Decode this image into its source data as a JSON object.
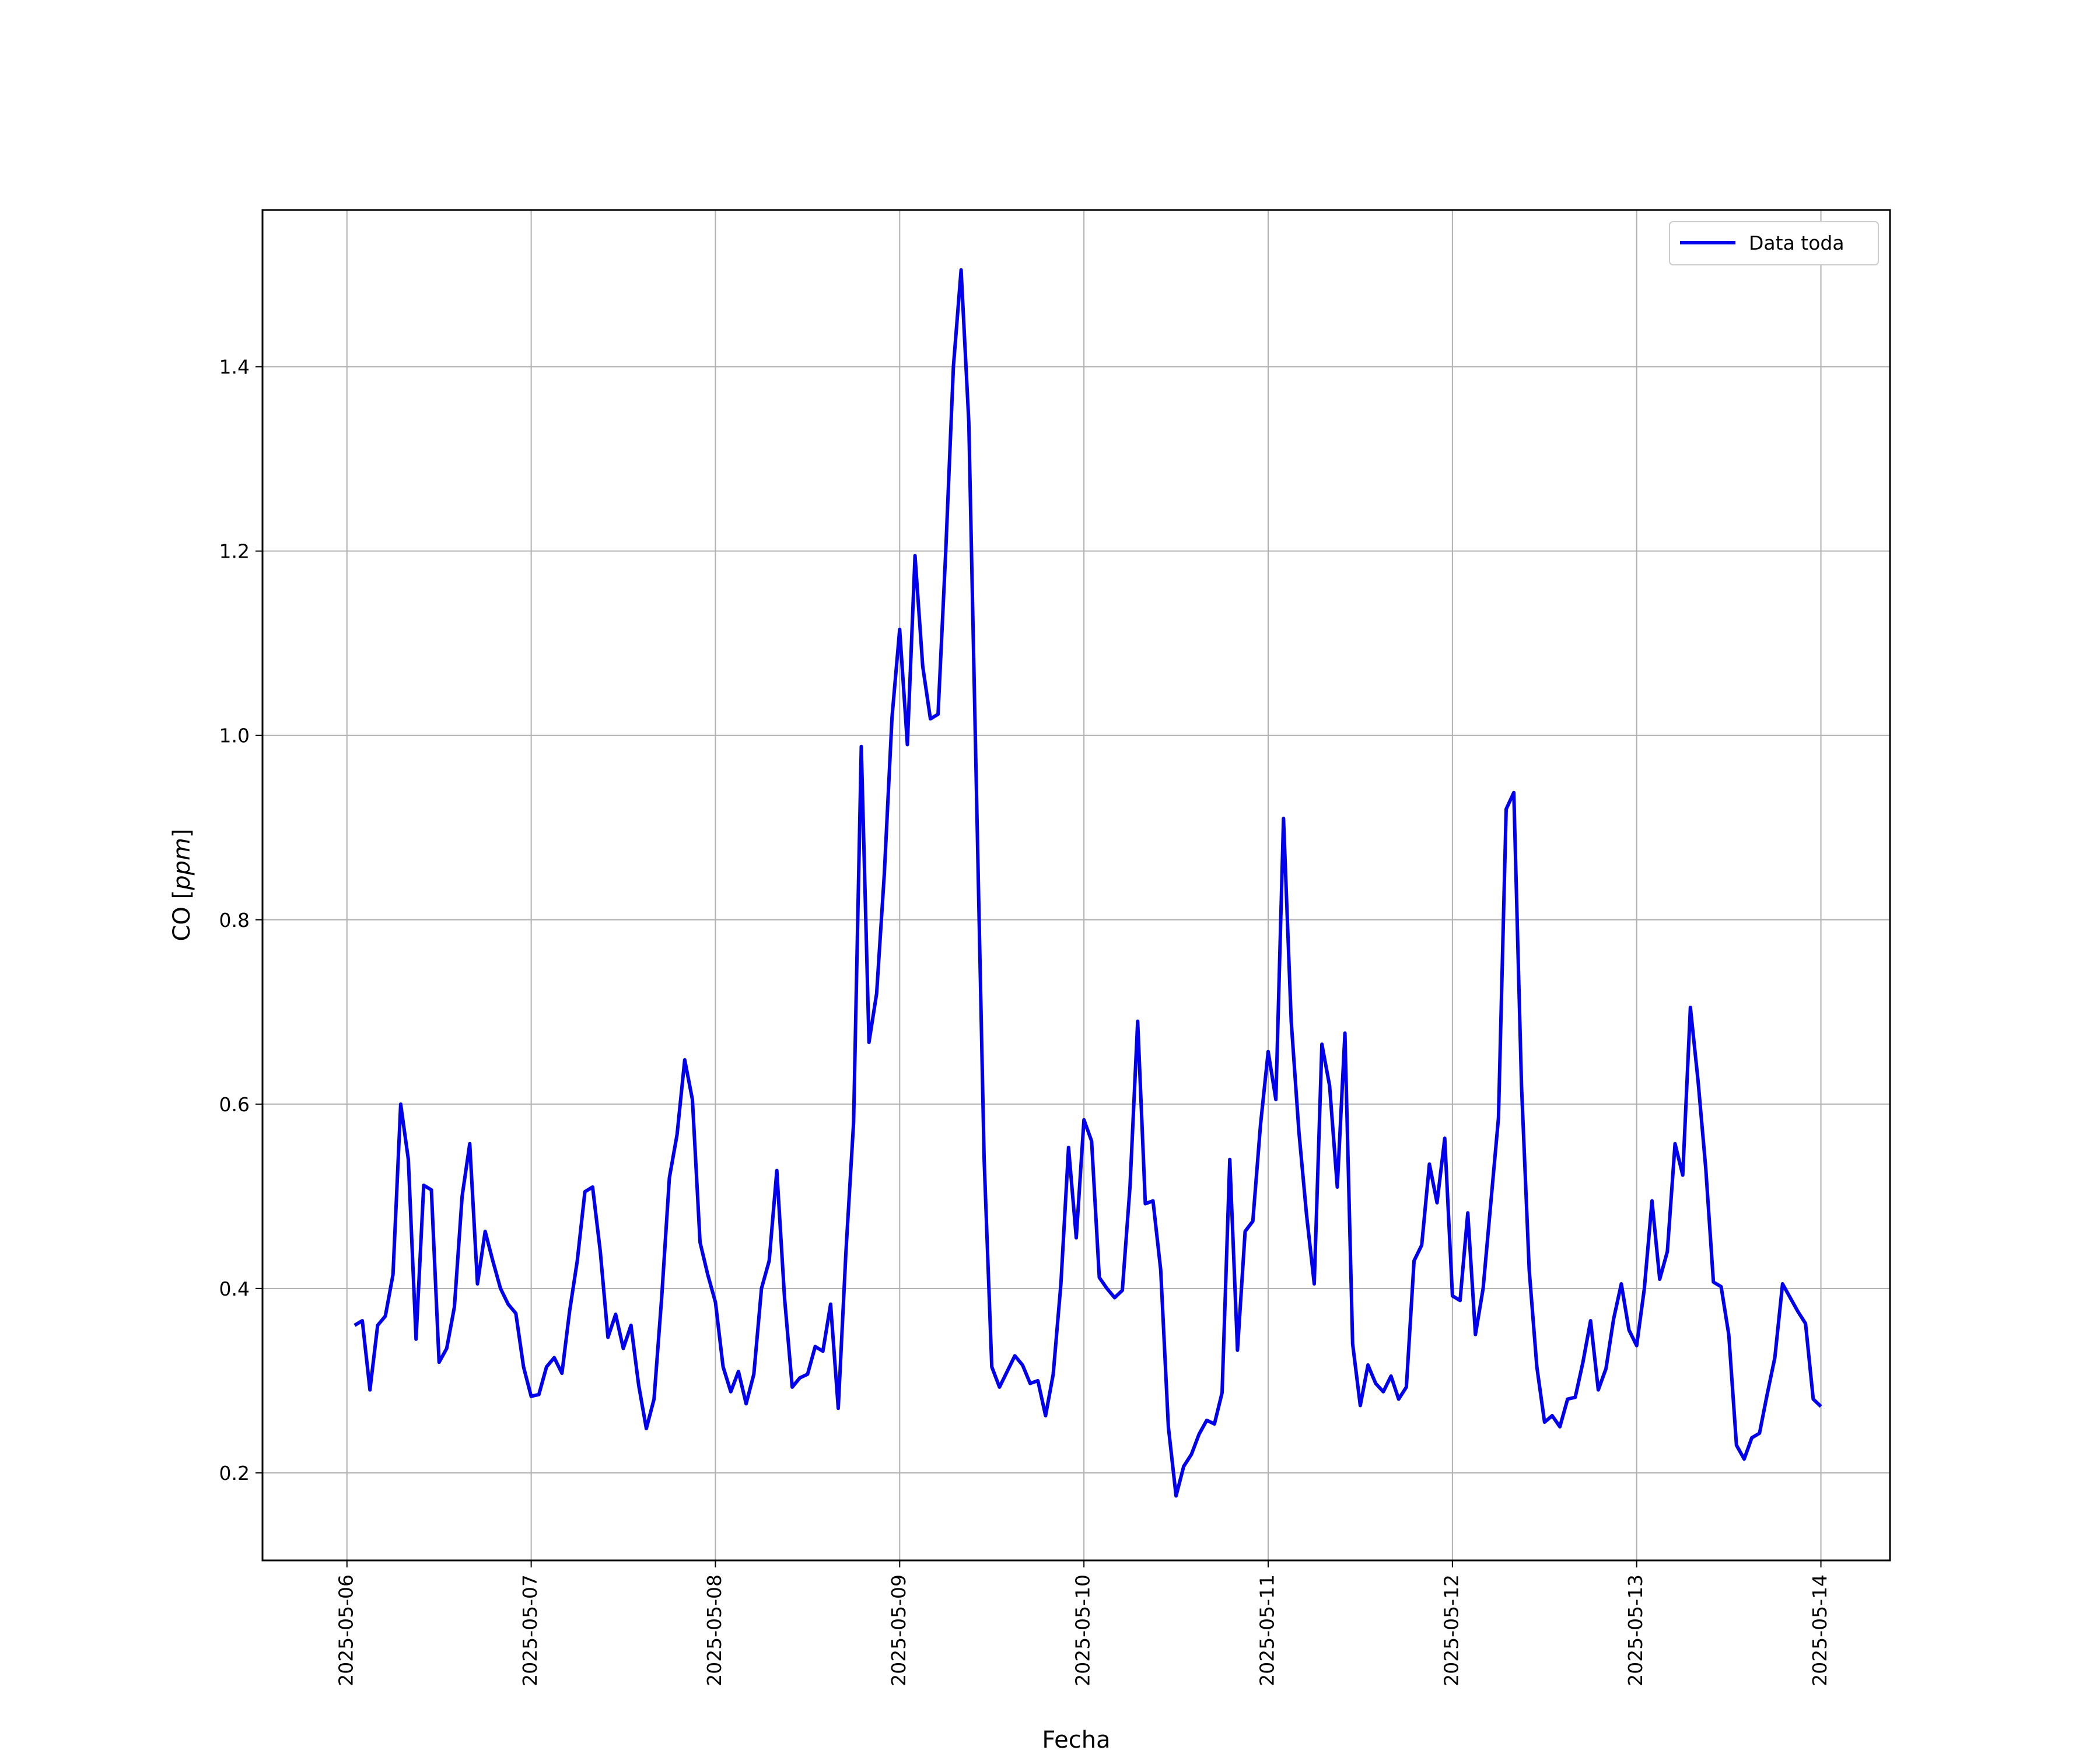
{
  "chart_data": {
    "type": "line",
    "title": "",
    "xlabel": "Fecha",
    "ylabel_main": "CO",
    "ylabel_unit": "ppm",
    "x_ticks": [
      "2025-05-06",
      "2025-05-07",
      "2025-05-08",
      "2025-05-09",
      "2025-05-10",
      "2025-05-11",
      "2025-05-12",
      "2025-05-13",
      "2025-05-14"
    ],
    "xlim": [
      "2025-05-05 13:00",
      "2025-05-14 09:00"
    ],
    "y_ticks": [
      "0.2",
      "0.4",
      "0.6",
      "0.8",
      "1.0",
      "1.2",
      "1.4"
    ],
    "ylim": [
      0.105,
      1.57
    ],
    "grid": true,
    "legend_position": "top-right",
    "color": "#0000ee",
    "series": [
      {
        "name": "Data toda",
        "points": [
          [
            "2025-05-06 01:00",
            0.36
          ],
          [
            "2025-05-06 02:00",
            0.365
          ],
          [
            "2025-05-06 03:00",
            0.29
          ],
          [
            "2025-05-06 04:00",
            0.36
          ],
          [
            "2025-05-06 05:00",
            0.37
          ],
          [
            "2025-05-06 06:00",
            0.415
          ],
          [
            "2025-05-06 07:00",
            0.6
          ],
          [
            "2025-05-06 08:00",
            0.54
          ],
          [
            "2025-05-06 09:00",
            0.345
          ],
          [
            "2025-05-06 10:00",
            0.512
          ],
          [
            "2025-05-06 11:00",
            0.507
          ],
          [
            "2025-05-06 12:00",
            0.32
          ],
          [
            "2025-05-06 13:00",
            0.335
          ],
          [
            "2025-05-06 14:00",
            0.38
          ],
          [
            "2025-05-06 15:00",
            0.5
          ],
          [
            "2025-05-06 16:00",
            0.557
          ],
          [
            "2025-05-06 17:00",
            0.405
          ],
          [
            "2025-05-06 18:00",
            0.462
          ],
          [
            "2025-05-06 19:00",
            0.43
          ],
          [
            "2025-05-06 20:00",
            0.4
          ],
          [
            "2025-05-06 21:00",
            0.383
          ],
          [
            "2025-05-06 22:00",
            0.373
          ],
          [
            "2025-05-06 23:00",
            0.315
          ],
          [
            "2025-05-07 00:00",
            0.283
          ],
          [
            "2025-05-07 01:00",
            0.285
          ],
          [
            "2025-05-07 02:00",
            0.315
          ],
          [
            "2025-05-07 03:00",
            0.325
          ],
          [
            "2025-05-07 04:00",
            0.308
          ],
          [
            "2025-05-07 05:00",
            0.375
          ],
          [
            "2025-05-07 06:00",
            0.43
          ],
          [
            "2025-05-07 07:00",
            0.505
          ],
          [
            "2025-05-07 08:00",
            0.51
          ],
          [
            "2025-05-07 09:00",
            0.44
          ],
          [
            "2025-05-07 10:00",
            0.347
          ],
          [
            "2025-05-07 11:00",
            0.372
          ],
          [
            "2025-05-07 12:00",
            0.335
          ],
          [
            "2025-05-07 13:00",
            0.36
          ],
          [
            "2025-05-07 14:00",
            0.295
          ],
          [
            "2025-05-07 15:00",
            0.248
          ],
          [
            "2025-05-07 16:00",
            0.28
          ],
          [
            "2025-05-07 17:00",
            0.39
          ],
          [
            "2025-05-07 18:00",
            0.52
          ],
          [
            "2025-05-07 19:00",
            0.567
          ],
          [
            "2025-05-07 20:00",
            0.648
          ],
          [
            "2025-05-07 21:00",
            0.605
          ],
          [
            "2025-05-07 22:00",
            0.45
          ],
          [
            "2025-05-07 23:00",
            0.415
          ],
          [
            "2025-05-08 00:00",
            0.385
          ],
          [
            "2025-05-08 01:00",
            0.315
          ],
          [
            "2025-05-08 02:00",
            0.288
          ],
          [
            "2025-05-08 03:00",
            0.31
          ],
          [
            "2025-05-08 04:00",
            0.275
          ],
          [
            "2025-05-08 05:00",
            0.307
          ],
          [
            "2025-05-08 06:00",
            0.4
          ],
          [
            "2025-05-08 07:00",
            0.43
          ],
          [
            "2025-05-08 08:00",
            0.528
          ],
          [
            "2025-05-08 09:00",
            0.39
          ],
          [
            "2025-05-08 10:00",
            0.293
          ],
          [
            "2025-05-08 11:00",
            0.303
          ],
          [
            "2025-05-08 12:00",
            0.307
          ],
          [
            "2025-05-08 13:00",
            0.337
          ],
          [
            "2025-05-08 14:00",
            0.332
          ],
          [
            "2025-05-08 15:00",
            0.383
          ],
          [
            "2025-05-08 16:00",
            0.27
          ],
          [
            "2025-05-08 17:00",
            0.44
          ],
          [
            "2025-05-08 18:00",
            0.58
          ],
          [
            "2025-05-08 19:00",
            0.988
          ],
          [
            "2025-05-08 20:00",
            0.667
          ],
          [
            "2025-05-08 21:00",
            0.72
          ],
          [
            "2025-05-08 22:00",
            0.85
          ],
          [
            "2025-05-08 23:00",
            1.02
          ],
          [
            "2025-05-09 00:00",
            1.115
          ],
          [
            "2025-05-09 01:00",
            0.99
          ],
          [
            "2025-05-09 02:00",
            1.195
          ],
          [
            "2025-05-09 03:00",
            1.075
          ],
          [
            "2025-05-09 04:00",
            1.018
          ],
          [
            "2025-05-09 05:00",
            1.023
          ],
          [
            "2025-05-09 06:00",
            1.2
          ],
          [
            "2025-05-09 07:00",
            1.4
          ],
          [
            "2025-05-09 08:00",
            1.505
          ],
          [
            "2025-05-09 09:00",
            1.34
          ],
          [
            "2025-05-09 10:00",
            0.94
          ],
          [
            "2025-05-09 11:00",
            0.54
          ],
          [
            "2025-05-09 12:00",
            0.315
          ],
          [
            "2025-05-09 13:00",
            0.293
          ],
          [
            "2025-05-09 14:00",
            0.31
          ],
          [
            "2025-05-09 15:00",
            0.327
          ],
          [
            "2025-05-09 16:00",
            0.317
          ],
          [
            "2025-05-09 17:00",
            0.297
          ],
          [
            "2025-05-09 18:00",
            0.3
          ],
          [
            "2025-05-09 19:00",
            0.262
          ],
          [
            "2025-05-09 20:00",
            0.307
          ],
          [
            "2025-05-09 21:00",
            0.405
          ],
          [
            "2025-05-09 22:00",
            0.553
          ],
          [
            "2025-05-09 23:00",
            0.455
          ],
          [
            "2025-05-10 00:00",
            0.583
          ],
          [
            "2025-05-10 01:00",
            0.56
          ],
          [
            "2025-05-10 02:00",
            0.412
          ],
          [
            "2025-05-10 03:00",
            0.4
          ],
          [
            "2025-05-10 04:00",
            0.39
          ],
          [
            "2025-05-10 05:00",
            0.398
          ],
          [
            "2025-05-10 06:00",
            0.51
          ],
          [
            "2025-05-10 07:00",
            0.69
          ],
          [
            "2025-05-10 08:00",
            0.492
          ],
          [
            "2025-05-10 09:00",
            0.495
          ],
          [
            "2025-05-10 10:00",
            0.42
          ],
          [
            "2025-05-10 11:00",
            0.25
          ],
          [
            "2025-05-10 12:00",
            0.175
          ],
          [
            "2025-05-10 13:00",
            0.207
          ],
          [
            "2025-05-10 14:00",
            0.22
          ],
          [
            "2025-05-10 15:00",
            0.242
          ],
          [
            "2025-05-10 16:00",
            0.257
          ],
          [
            "2025-05-10 17:00",
            0.253
          ],
          [
            "2025-05-10 18:00",
            0.287
          ],
          [
            "2025-05-10 19:00",
            0.54
          ],
          [
            "2025-05-10 20:00",
            0.333
          ],
          [
            "2025-05-10 21:00",
            0.462
          ],
          [
            "2025-05-10 22:00",
            0.473
          ],
          [
            "2025-05-10 23:00",
            0.577
          ],
          [
            "2025-05-11 00:00",
            0.657
          ],
          [
            "2025-05-11 01:00",
            0.605
          ],
          [
            "2025-05-11 02:00",
            0.91
          ],
          [
            "2025-05-11 03:00",
            0.69
          ],
          [
            "2025-05-11 04:00",
            0.57
          ],
          [
            "2025-05-11 05:00",
            0.48
          ],
          [
            "2025-05-11 06:00",
            0.405
          ],
          [
            "2025-05-11 07:00",
            0.665
          ],
          [
            "2025-05-11 08:00",
            0.62
          ],
          [
            "2025-05-11 09:00",
            0.51
          ],
          [
            "2025-05-11 10:00",
            0.677
          ],
          [
            "2025-05-11 11:00",
            0.34
          ],
          [
            "2025-05-11 12:00",
            0.273
          ],
          [
            "2025-05-11 13:00",
            0.317
          ],
          [
            "2025-05-11 14:00",
            0.297
          ],
          [
            "2025-05-11 15:00",
            0.288
          ],
          [
            "2025-05-11 16:00",
            0.305
          ],
          [
            "2025-05-11 17:00",
            0.28
          ],
          [
            "2025-05-11 18:00",
            0.293
          ],
          [
            "2025-05-11 19:00",
            0.43
          ],
          [
            "2025-05-11 20:00",
            0.447
          ],
          [
            "2025-05-11 21:00",
            0.535
          ],
          [
            "2025-05-11 22:00",
            0.493
          ],
          [
            "2025-05-11 23:00",
            0.563
          ],
          [
            "2025-05-12 00:00",
            0.392
          ],
          [
            "2025-05-12 01:00",
            0.387
          ],
          [
            "2025-05-12 02:00",
            0.482
          ],
          [
            "2025-05-12 03:00",
            0.35
          ],
          [
            "2025-05-12 04:00",
            0.4
          ],
          [
            "2025-05-12 05:00",
            0.493
          ],
          [
            "2025-05-12 06:00",
            0.585
          ],
          [
            "2025-05-12 07:00",
            0.92
          ],
          [
            "2025-05-12 08:00",
            0.938
          ],
          [
            "2025-05-12 09:00",
            0.62
          ],
          [
            "2025-05-12 10:00",
            0.42
          ],
          [
            "2025-05-12 11:00",
            0.315
          ],
          [
            "2025-05-12 12:00",
            0.255
          ],
          [
            "2025-05-12 13:00",
            0.262
          ],
          [
            "2025-05-12 14:00",
            0.25
          ],
          [
            "2025-05-12 15:00",
            0.28
          ],
          [
            "2025-05-12 16:00",
            0.282
          ],
          [
            "2025-05-12 17:00",
            0.32
          ],
          [
            "2025-05-12 18:00",
            0.365
          ],
          [
            "2025-05-12 19:00",
            0.29
          ],
          [
            "2025-05-12 20:00",
            0.313
          ],
          [
            "2025-05-12 21:00",
            0.367
          ],
          [
            "2025-05-12 22:00",
            0.405
          ],
          [
            "2025-05-12 23:00",
            0.355
          ],
          [
            "2025-05-13 00:00",
            0.338
          ],
          [
            "2025-05-13 01:00",
            0.4
          ],
          [
            "2025-05-13 02:00",
            0.495
          ],
          [
            "2025-05-13 03:00",
            0.41
          ],
          [
            "2025-05-13 04:00",
            0.44
          ],
          [
            "2025-05-13 05:00",
            0.557
          ],
          [
            "2025-05-13 06:00",
            0.523
          ],
          [
            "2025-05-13 07:00",
            0.705
          ],
          [
            "2025-05-13 08:00",
            0.625
          ],
          [
            "2025-05-13 09:00",
            0.53
          ],
          [
            "2025-05-13 10:00",
            0.407
          ],
          [
            "2025-05-13 11:00",
            0.402
          ],
          [
            "2025-05-13 12:00",
            0.35
          ],
          [
            "2025-05-13 13:00",
            0.23
          ],
          [
            "2025-05-13 14:00",
            0.215
          ],
          [
            "2025-05-13 15:00",
            0.238
          ],
          [
            "2025-05-13 16:00",
            0.243
          ],
          [
            "2025-05-13 17:00",
            0.285
          ],
          [
            "2025-05-13 18:00",
            0.325
          ],
          [
            "2025-05-13 19:00",
            0.405
          ],
          [
            "2025-05-13 20:00",
            0.39
          ],
          [
            "2025-05-13 21:00",
            0.375
          ],
          [
            "2025-05-13 22:00",
            0.362
          ],
          [
            "2025-05-13 23:00",
            0.28
          ],
          [
            "2025-05-14 00:00",
            0.272
          ]
        ]
      }
    ]
  }
}
